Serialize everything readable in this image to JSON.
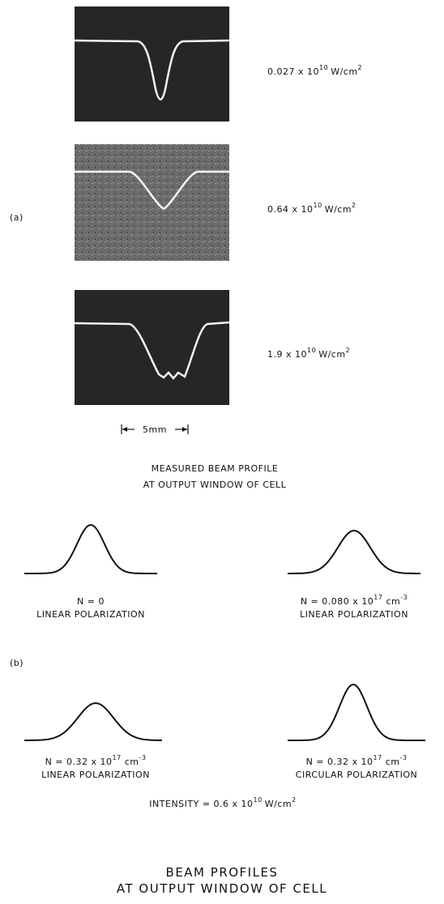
{
  "panel_a": {
    "label": "(a)",
    "profiles": [
      {
        "base": "0.027 x 10",
        "exp": "10",
        "unit": "W/cm",
        "unit_exp": "2"
      },
      {
        "base": "0.64 x 10",
        "exp": "10",
        "unit": "W/cm",
        "unit_exp": "2"
      },
      {
        "base": "1.9 x 10",
        "exp": "10",
        "unit": "W/cm",
        "unit_exp": "2"
      }
    ],
    "scale_label": "5mm",
    "caption": [
      "MEASURED BEAM PROFILE",
      "AT OUTPUT WINDOW OF CELL"
    ]
  },
  "panel_b": {
    "label": "(b)",
    "profiles": [
      {
        "base": "N = 0",
        "exp": "",
        "unit": "",
        "unit_exp": "",
        "polarization": "LINEAR POLARIZATION"
      },
      {
        "base": "N = 0.080 x 10",
        "exp": "17",
        "unit": "cm",
        "unit_exp": "-3",
        "polarization": "LINEAR POLARIZATION"
      },
      {
        "base": "N = 0.32 x 10",
        "exp": "17",
        "unit": "cm",
        "unit_exp": "-3",
        "polarization": "LINEAR POLARIZATION"
      },
      {
        "base": "N = 0.32 x 10",
        "exp": "17",
        "unit": "cm",
        "unit_exp": "-3",
        "polarization": "CIRCULAR POLARIZATION"
      }
    ],
    "intensity": {
      "base": "INTENSITY = 0.6 x 10",
      "exp": "10",
      "unit": "W/cm",
      "unit_exp": "2"
    },
    "caption": [
      "BEAM PROFILES",
      "AT OUTPUT WINDOW OF CELL"
    ]
  }
}
